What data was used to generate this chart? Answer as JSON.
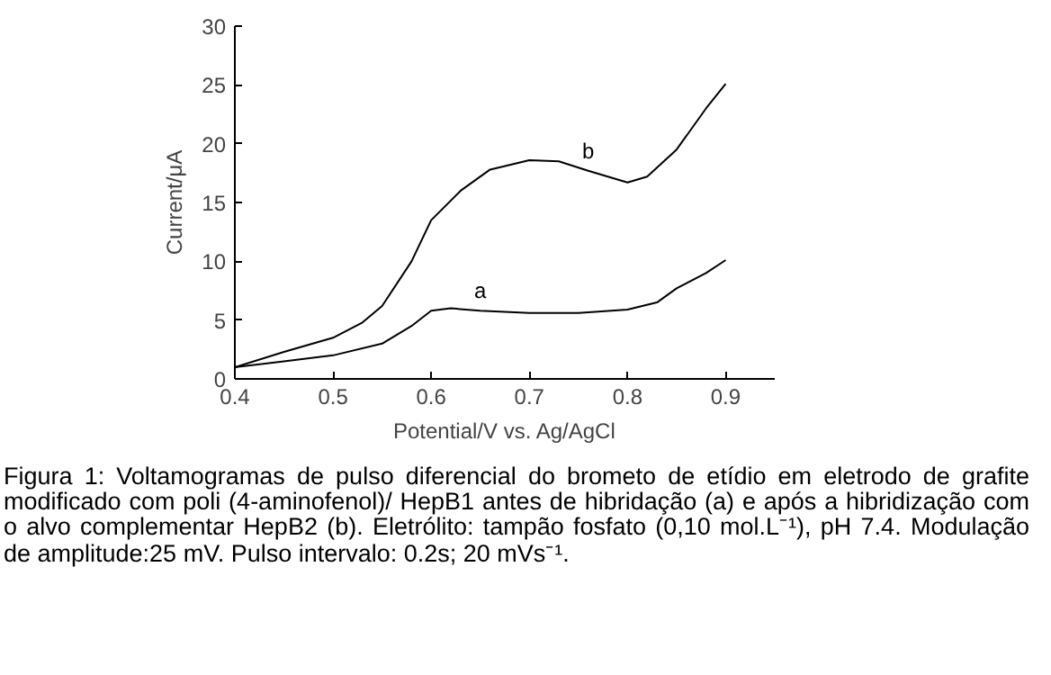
{
  "chart_data": {
    "type": "line",
    "xlabel": "Potential/V vs. Ag/AgCl",
    "ylabel": "Current/μA",
    "xlim": [
      0.4,
      0.95
    ],
    "xticks": [
      0.4,
      0.5,
      0.6,
      0.7,
      0.8,
      0.9
    ],
    "ylim": [
      0,
      30
    ],
    "yticks": [
      0,
      5,
      10,
      15,
      20,
      25,
      30
    ],
    "grid": false,
    "marker": "none",
    "line_style": "solid",
    "series": [
      {
        "name": "a",
        "color": "#000000",
        "x": [
          0.4,
          0.45,
          0.5,
          0.55,
          0.58,
          0.6,
          0.62,
          0.65,
          0.7,
          0.75,
          0.8,
          0.83,
          0.85,
          0.88,
          0.9
        ],
        "values": [
          1.0,
          1.5,
          2.0,
          3.0,
          4.5,
          5.8,
          6.0,
          5.8,
          5.6,
          5.6,
          5.9,
          6.5,
          7.7,
          9.0,
          10.1
        ]
      },
      {
        "name": "b",
        "color": "#000000",
        "x": [
          0.4,
          0.45,
          0.5,
          0.53,
          0.55,
          0.58,
          0.6,
          0.63,
          0.66,
          0.7,
          0.73,
          0.76,
          0.8,
          0.82,
          0.85,
          0.88,
          0.9
        ],
        "values": [
          1.0,
          2.3,
          3.5,
          4.8,
          6.2,
          10.0,
          13.5,
          16.0,
          17.8,
          18.6,
          18.5,
          17.7,
          16.7,
          17.2,
          19.5,
          23.0,
          25.1
        ]
      }
    ],
    "annotations": [
      "Figura 1: Voltamogramas de pulso diferencial do brometo de etídio em eletrodo de grafite modificado com poli (4-aminofenol)/ HepB1 antes de hibridação (a) e após a hibridização com o alvo complementar HepB2 (b). Eletrólito: tampão fosfato (0,10 mol.L⁻¹), pH 7.4. Modulação de amplitude:25 mV. Pulso intervalo: 0.2s; 20 mVs⁻¹."
    ]
  }
}
